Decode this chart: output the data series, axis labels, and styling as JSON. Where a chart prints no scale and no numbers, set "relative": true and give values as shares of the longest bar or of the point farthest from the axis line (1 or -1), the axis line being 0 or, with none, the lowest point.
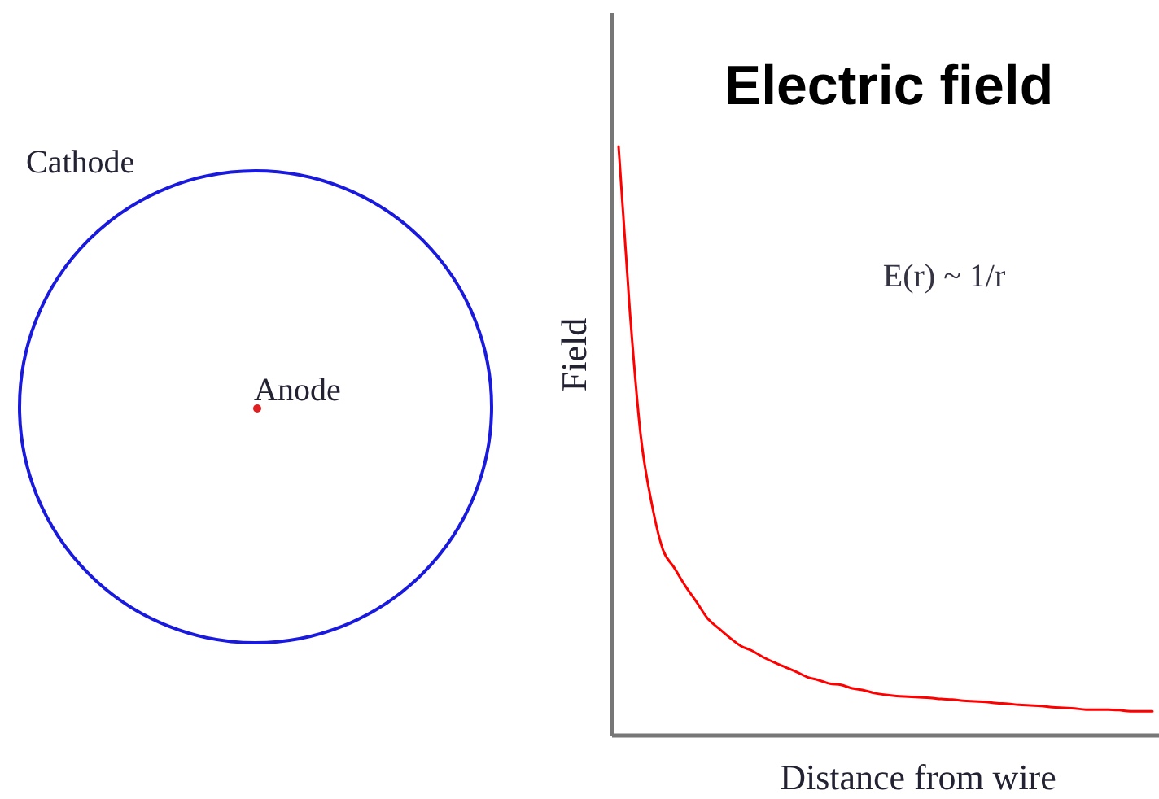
{
  "chart_data": {
    "type": "line",
    "relative": true,
    "title": "Electric field",
    "xlabel": "Distance from wire",
    "ylabel": "Field",
    "annotations": [
      "E(r) ~ 1/r",
      "Cathode",
      "Anode"
    ],
    "categories": [
      null,
      null,
      null,
      null,
      null,
      null,
      null,
      null,
      null,
      null,
      null,
      null,
      null,
      null,
      null,
      null,
      null,
      null,
      null,
      null,
      null,
      null,
      null,
      null,
      null,
      null,
      null,
      null,
      null,
      null,
      null,
      null,
      null,
      null,
      null,
      null,
      null,
      null,
      null,
      null,
      null,
      null,
      null,
      null,
      null,
      null,
      null,
      null,
      null
    ],
    "series": [
      {
        "color": "#ff0000",
        "values": [
          1.0,
          0.724,
          0.508,
          0.392,
          0.315,
          0.285,
          0.254,
          0.227,
          0.199,
          0.182,
          0.166,
          0.152,
          0.144,
          0.133,
          0.124,
          0.116,
          0.108,
          0.099,
          0.094,
          0.088,
          0.086,
          0.08,
          0.077,
          0.072,
          0.069,
          0.067,
          0.066,
          0.065,
          0.064,
          0.062,
          0.061,
          0.059,
          0.058,
          0.057,
          0.055,
          0.054,
          0.052,
          0.051,
          0.05,
          0.048,
          0.047,
          0.046,
          0.044,
          0.044,
          0.044,
          0.043,
          0.041,
          0.041,
          0.041
        ]
      }
    ]
  }
}
